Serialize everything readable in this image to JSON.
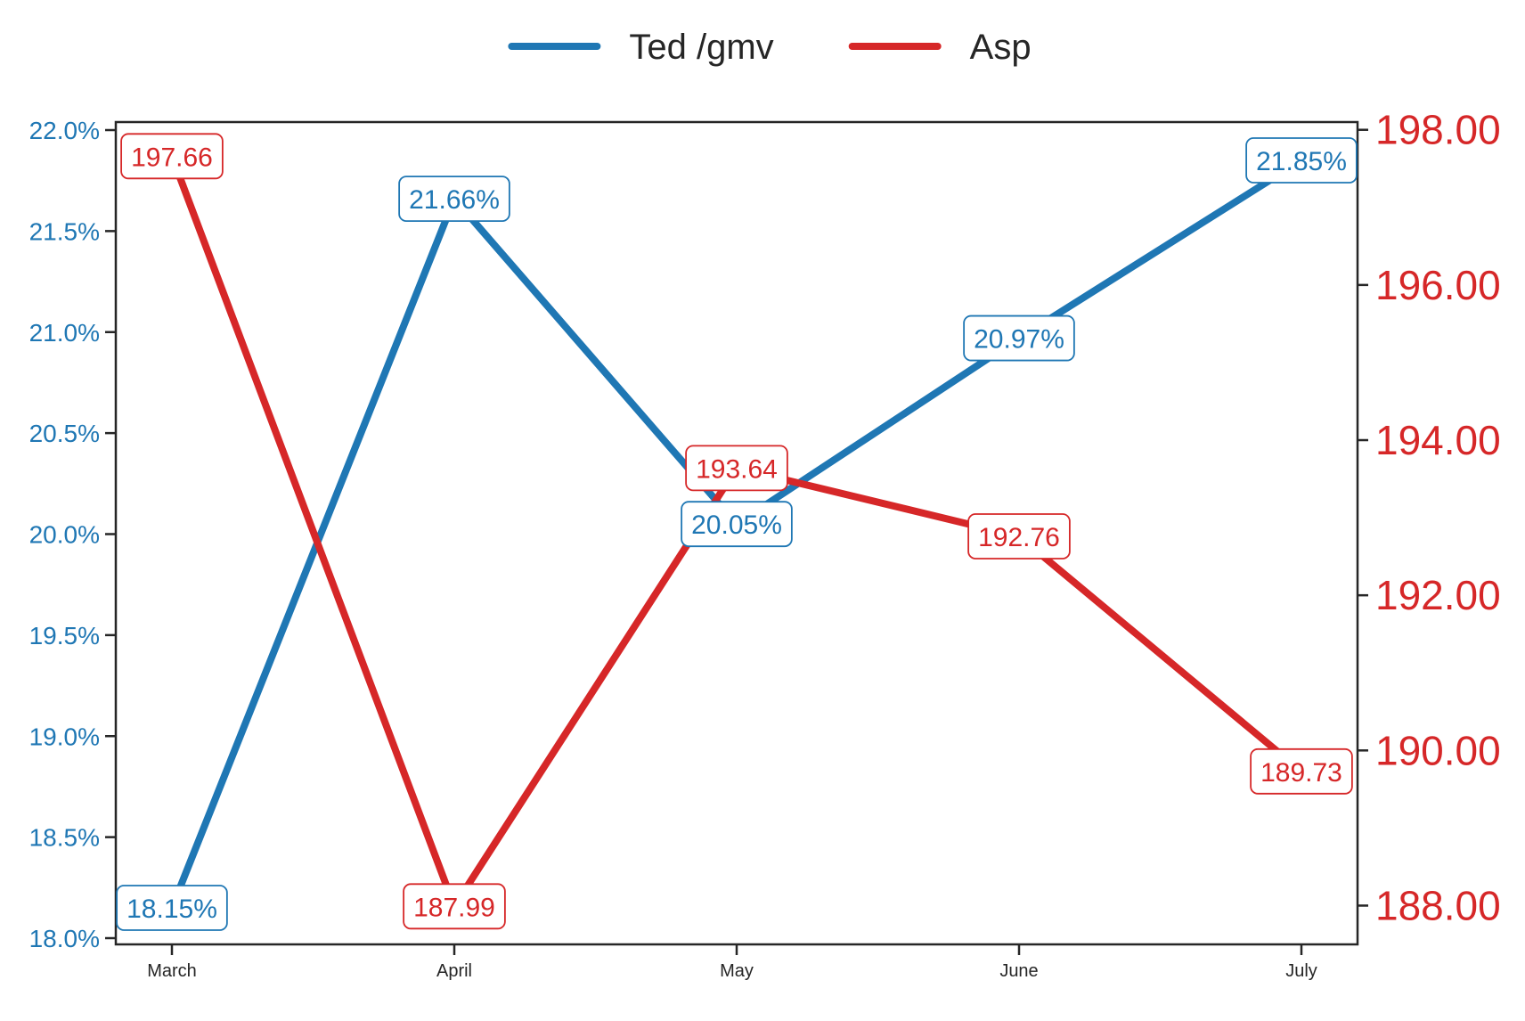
{
  "chart_data": {
    "type": "line",
    "categories": [
      "March",
      "April",
      "May",
      "June",
      "July"
    ],
    "series": [
      {
        "name": "Ted /gmv",
        "axis": "left",
        "color": "#1f77b4",
        "values": [
          18.15,
          21.66,
          20.05,
          20.97,
          21.85
        ],
        "labels": [
          "18.15%",
          "21.66%",
          "20.05%",
          "20.97%",
          "21.85%"
        ]
      },
      {
        "name": "Asp",
        "axis": "right",
        "color": "#d62728",
        "values": [
          197.66,
          187.99,
          193.64,
          192.76,
          189.73
        ],
        "labels": [
          "197.66",
          "187.99",
          "193.64",
          "192.76",
          "189.73"
        ]
      }
    ],
    "left_axis": {
      "ylim": [
        18.0,
        22.0
      ],
      "ticks": [
        18.0,
        18.5,
        19.0,
        19.5,
        20.0,
        20.5,
        21.0,
        21.5,
        22.0
      ],
      "tick_labels": [
        "18.0%",
        "18.5%",
        "19.0%",
        "19.5%",
        "20.0%",
        "20.5%",
        "21.0%",
        "21.5%",
        "22.0%"
      ],
      "color": "#1f77b4"
    },
    "right_axis": {
      "ylim": [
        187.5,
        198.1
      ],
      "ticks": [
        188,
        190,
        192,
        194,
        196,
        198
      ],
      "tick_labels": [
        "188.00",
        "190.00",
        "192.00",
        "194.00",
        "196.00",
        "198.00"
      ],
      "color": "#d62728"
    },
    "legend": {
      "position": "top-center",
      "entries": [
        "Ted /gmv",
        "Asp"
      ]
    },
    "grid": false,
    "title": "",
    "xlabel": "",
    "ylabel": ""
  }
}
